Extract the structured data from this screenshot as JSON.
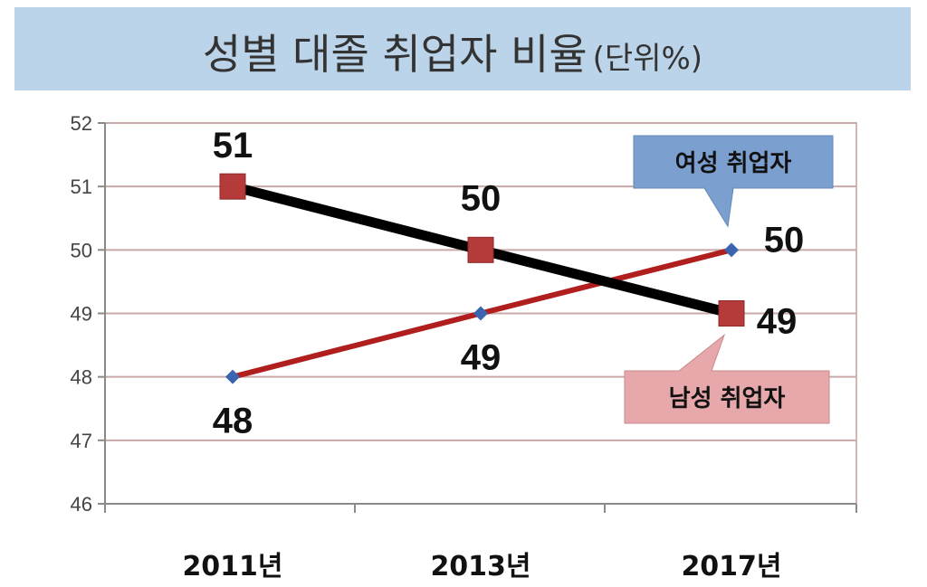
{
  "chart_data": {
    "type": "line",
    "title": "성별 대졸 취업자 비율",
    "title_unit": "(단위%)",
    "categories": [
      "2011년",
      "2013년",
      "2017년"
    ],
    "ylim": [
      46,
      52
    ],
    "yticks": [
      "46",
      "47",
      "48",
      "49",
      "50",
      "51",
      "52"
    ],
    "grid": true,
    "series": [
      {
        "name": "남성 취업자",
        "values": [
          51,
          50,
          49
        ],
        "data_labels": [
          "51",
          "50",
          "49"
        ],
        "line_color": "#000000",
        "marker": "square",
        "marker_color": "#b53a3a",
        "callout_color": "#e6a8aa"
      },
      {
        "name": "여성 취업자",
        "values": [
          48,
          49,
          50
        ],
        "data_labels": [
          "48",
          "49",
          "50"
        ],
        "line_color": "#b01e1e",
        "marker": "diamond",
        "marker_color": "#3a64b0",
        "callout_color": "#7ba0cf"
      }
    ],
    "colors": {
      "title_band": "#bcd4e9",
      "grid": "#c9a8a8",
      "plot_border": "#d2b7b7"
    }
  }
}
